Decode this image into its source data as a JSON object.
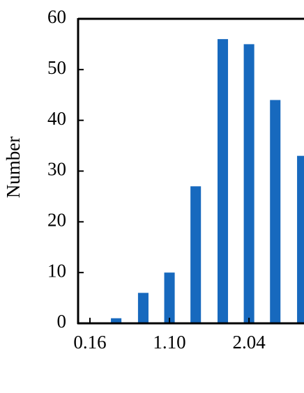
{
  "chart_data": {
    "type": "bar",
    "y_label": "Number",
    "x": [
      0.47,
      0.79,
      1.1,
      1.41,
      1.73,
      2.04,
      2.35,
      2.67
    ],
    "values": [
      1,
      6,
      10,
      27,
      56,
      55,
      44,
      33
    ],
    "color": "#1769be",
    "xlim": [
      0.02,
      2.69
    ],
    "xticks": [
      0.16,
      {
        "value": 1.1,
        "label": "1.10"
      },
      2.04
    ],
    "ylim": [
      0,
      60
    ],
    "yticks": [
      0,
      10,
      20,
      30,
      40,
      50,
      60
    ]
  }
}
